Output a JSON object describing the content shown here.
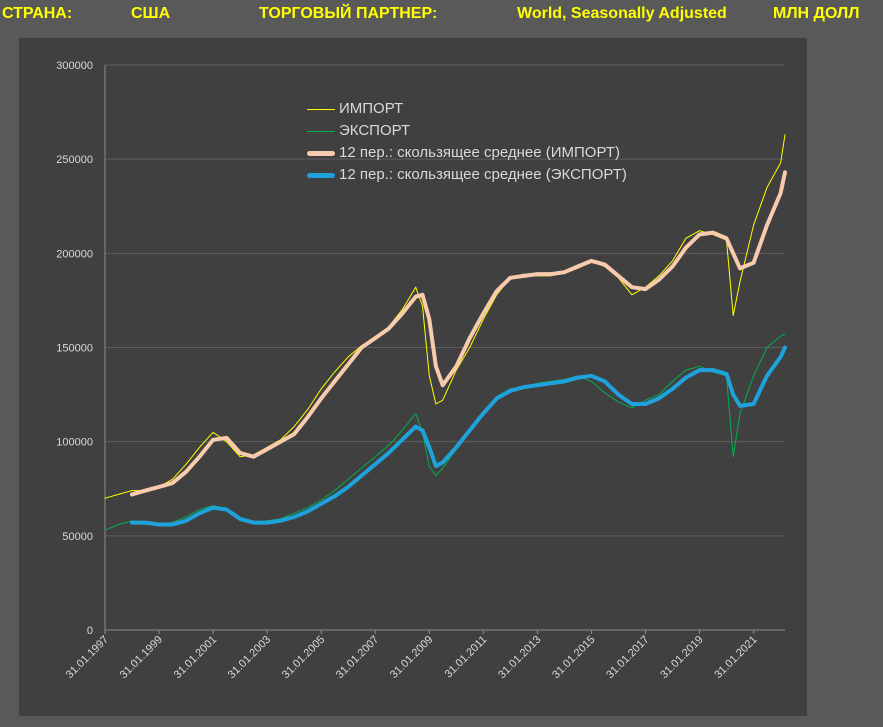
{
  "header": {
    "country_label": "СТРАНА:",
    "country": "США",
    "partner_label": "ТОРГОВЫЙ ПАРТНЕР:",
    "partner": "World, Seasonally Adjusted",
    "unit": "МЛН ДОЛЛ"
  },
  "colors": {
    "background": "#595959",
    "panel": "#404040",
    "header_text": "#ffff00",
    "import": "#ffff00",
    "export": "#00b050",
    "import_ma": "#f8cbad",
    "export_ma": "#1fa2dc"
  },
  "chart_data": {
    "type": "line",
    "title": "",
    "xlabel": "",
    "ylabel": "",
    "ylim": [
      0,
      300000
    ],
    "yticks": [
      0,
      50000,
      100000,
      150000,
      200000,
      250000,
      300000
    ],
    "xlim": [
      "1997-01-31",
      "2022-03-31"
    ],
    "xtick_labels": [
      "31.01.1997",
      "31.01.1999",
      "31.01.2001",
      "31.01.2003",
      "31.01.2005",
      "31.01.2007",
      "31.01.2009",
      "31.01.2011",
      "31.01.2013",
      "31.01.2015",
      "31.01.2017",
      "31.01.2019",
      "31.01.2021"
    ],
    "grid": "horizontal",
    "legend_placement": "top-center",
    "x": [
      "1997-01-31",
      "1997-07-31",
      "1998-01-31",
      "1998-07-31",
      "1999-01-31",
      "1999-07-31",
      "2000-01-31",
      "2000-07-31",
      "2001-01-31",
      "2001-07-31",
      "2002-01-31",
      "2002-07-31",
      "2003-01-31",
      "2003-07-31",
      "2004-01-31",
      "2004-07-31",
      "2005-01-31",
      "2005-07-31",
      "2006-01-31",
      "2006-07-31",
      "2007-01-31",
      "2007-07-31",
      "2008-01-31",
      "2008-07-31",
      "2008-10-31",
      "2009-01-31",
      "2009-04-30",
      "2009-07-31",
      "2010-01-31",
      "2010-07-31",
      "2011-01-31",
      "2011-07-31",
      "2012-01-31",
      "2012-07-31",
      "2013-01-31",
      "2013-07-31",
      "2014-01-31",
      "2014-07-31",
      "2015-01-31",
      "2015-07-31",
      "2016-01-31",
      "2016-07-31",
      "2017-01-31",
      "2017-07-31",
      "2018-01-31",
      "2018-07-31",
      "2019-01-31",
      "2019-07-31",
      "2020-01-31",
      "2020-04-30",
      "2020-07-31",
      "2021-01-31",
      "2021-07-31",
      "2022-01-31",
      "2022-03-31"
    ],
    "series": [
      {
        "name": "ИМПОРТ",
        "values": [
          70000,
          72000,
          74000,
          74000,
          76000,
          80000,
          88000,
          97000,
          105000,
          100000,
          92000,
          93000,
          97000,
          101000,
          108000,
          117000,
          128000,
          137000,
          145000,
          151000,
          155000,
          161000,
          170000,
          182000,
          172000,
          135000,
          120000,
          122000,
          138000,
          150000,
          165000,
          178000,
          187000,
          189000,
          188000,
          188000,
          190000,
          192000,
          196000,
          193000,
          187000,
          178000,
          182000,
          188000,
          196000,
          208000,
          212000,
          210000,
          207000,
          167000,
          185000,
          215000,
          235000,
          248000,
          263000
        ]
      },
      {
        "name": "ЭКСПОРТ",
        "values": [
          53000,
          56000,
          58000,
          56000,
          56000,
          57000,
          60000,
          64000,
          66000,
          64000,
          58000,
          57000,
          58000,
          59000,
          62000,
          65000,
          69000,
          74000,
          80000,
          86000,
          92000,
          98000,
          106000,
          115000,
          105000,
          87000,
          82000,
          86000,
          96000,
          105000,
          116000,
          124000,
          128000,
          129000,
          131000,
          132000,
          133000,
          135000,
          132000,
          126000,
          121000,
          118000,
          122000,
          125000,
          132000,
          138000,
          140000,
          137000,
          135000,
          92000,
          115000,
          135000,
          150000,
          156000,
          157000
        ]
      },
      {
        "name": "12 пер.: скользящее среднее (ИМПОРТ)",
        "x": [
          "1998-01-31",
          "1998-07-31",
          "1999-01-31",
          "1999-07-31",
          "2000-01-31",
          "2000-07-31",
          "2001-01-31",
          "2001-07-31",
          "2002-01-31",
          "2002-07-31",
          "2003-01-31",
          "2003-07-31",
          "2004-01-31",
          "2004-07-31",
          "2005-01-31",
          "2005-07-31",
          "2006-01-31",
          "2006-07-31",
          "2007-01-31",
          "2007-07-31",
          "2008-01-31",
          "2008-07-31",
          "2008-10-31",
          "2009-01-31",
          "2009-04-30",
          "2009-07-31",
          "2010-01-31",
          "2010-07-31",
          "2011-01-31",
          "2011-07-31",
          "2012-01-31",
          "2012-07-31",
          "2013-01-31",
          "2013-07-31",
          "2014-01-31",
          "2014-07-31",
          "2015-01-31",
          "2015-07-31",
          "2016-01-31",
          "2016-07-31",
          "2017-01-31",
          "2017-07-31",
          "2018-01-31",
          "2018-07-31",
          "2019-01-31",
          "2019-07-31",
          "2020-01-31",
          "2020-04-30",
          "2020-07-31",
          "2021-01-31",
          "2021-07-31",
          "2022-01-31",
          "2022-03-31"
        ],
        "values": [
          72000,
          74000,
          76000,
          78000,
          84000,
          92000,
          101000,
          102000,
          94000,
          92000,
          96000,
          100000,
          104000,
          113000,
          123000,
          132000,
          141000,
          150000,
          155000,
          160000,
          168000,
          177000,
          178000,
          165000,
          140000,
          130000,
          140000,
          155000,
          168000,
          180000,
          187000,
          188000,
          189000,
          189000,
          190000,
          193000,
          196000,
          194000,
          188000,
          182000,
          181000,
          186000,
          193000,
          203000,
          210000,
          211000,
          208000,
          200000,
          192000,
          195000,
          215000,
          232000,
          243000
        ]
      },
      {
        "name": "12 пер.: скользящее среднее (ЭКСПОРТ)",
        "x": [
          "1998-01-31",
          "1998-07-31",
          "1999-01-31",
          "1999-07-31",
          "2000-01-31",
          "2000-07-31",
          "2001-01-31",
          "2001-07-31",
          "2002-01-31",
          "2002-07-31",
          "2003-01-31",
          "2003-07-31",
          "2004-01-31",
          "2004-07-31",
          "2005-01-31",
          "2005-07-31",
          "2006-01-31",
          "2006-07-31",
          "2007-01-31",
          "2007-07-31",
          "2008-01-31",
          "2008-07-31",
          "2008-10-31",
          "2009-01-31",
          "2009-04-30",
          "2009-07-31",
          "2010-01-31",
          "2010-07-31",
          "2011-01-31",
          "2011-07-31",
          "2012-01-31",
          "2012-07-31",
          "2013-01-31",
          "2013-07-31",
          "2014-01-31",
          "2014-07-31",
          "2015-01-31",
          "2015-07-31",
          "2016-01-31",
          "2016-07-31",
          "2017-01-31",
          "2017-07-31",
          "2018-01-31",
          "2018-07-31",
          "2019-01-31",
          "2019-07-31",
          "2020-01-31",
          "2020-04-30",
          "2020-07-31",
          "2021-01-31",
          "2021-07-31",
          "2022-01-31",
          "2022-03-31"
        ],
        "values": [
          57000,
          57000,
          56000,
          56000,
          58000,
          62000,
          65000,
          64000,
          59000,
          57000,
          57000,
          58000,
          60000,
          63000,
          67000,
          71000,
          76000,
          82000,
          88000,
          94000,
          101000,
          108000,
          106000,
          97000,
          87000,
          89000,
          97000,
          106000,
          115000,
          123000,
          127000,
          129000,
          130000,
          131000,
          132000,
          134000,
          135000,
          132000,
          125000,
          120000,
          120000,
          123000,
          128000,
          134000,
          138000,
          138000,
          136000,
          125000,
          119000,
          120000,
          135000,
          145000,
          150000
        ]
      }
    ]
  }
}
